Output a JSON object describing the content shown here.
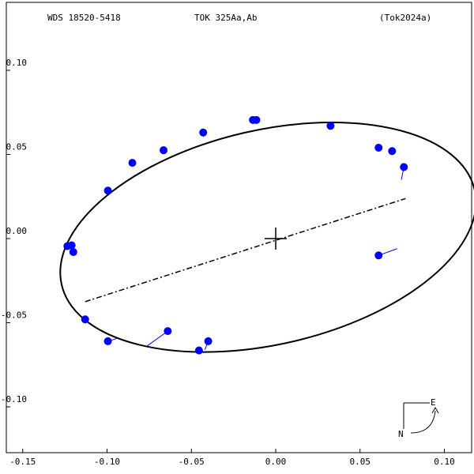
{
  "header": {
    "left": "WDS 18520-5418",
    "center": "TOK 325Aa,Ab",
    "right": "(Tok2024a)"
  },
  "compass": {
    "east_label": "E",
    "north_label": "N"
  },
  "colors": {
    "points": "#0000ff",
    "orbit": "#000000",
    "frame": "#000000"
  },
  "chart_data": {
    "type": "scatter",
    "xlim": [
      -0.15,
      0.1
    ],
    "ylim": [
      -0.12,
      0.12
    ],
    "x_ticks": [
      -0.15,
      -0.1,
      -0.05,
      0.0,
      0.05,
      0.1
    ],
    "x_tick_labels": [
      "-0.15",
      "-0.10",
      "-0.05",
      "0.00",
      "0.05",
      "0.10"
    ],
    "y_ticks": [
      0.1,
      0.05,
      0.0,
      -0.05,
      -0.1
    ],
    "y_tick_labels": [
      "0.10",
      "0.05",
      "0.00",
      "-0.05",
      "-0.10"
    ],
    "grid": false,
    "orbit": {
      "center": [
        -0.0045,
        0.0008
      ],
      "semi_major_axis": 0.1256,
      "semi_minor_axis": 0.0637,
      "tilt_deg": 13
    },
    "line_of_nodes": {
      "from": [
        -0.113,
        -0.0375
      ],
      "to": [
        0.077,
        0.0238
      ]
    },
    "primary": [
      0.0,
      0.0
    ],
    "observations": [
      {
        "x": -0.0135,
        "y": 0.0705,
        "orbit_x": -0.0135,
        "orbit_y": 0.0705
      },
      {
        "x": -0.0115,
        "y": 0.0705,
        "orbit_x": -0.0115,
        "orbit_y": 0.0705
      },
      {
        "x": 0.0325,
        "y": 0.067,
        "orbit_x": 0.0325,
        "orbit_y": 0.067
      },
      {
        "x": -0.043,
        "y": 0.063,
        "orbit_x": -0.043,
        "orbit_y": 0.063
      },
      {
        "x": 0.061,
        "y": 0.054,
        "orbit_x": 0.061,
        "orbit_y": 0.054
      },
      {
        "x": 0.069,
        "y": 0.052,
        "orbit_x": 0.069,
        "orbit_y": 0.052
      },
      {
        "x": -0.0665,
        "y": 0.0525,
        "orbit_x": -0.0665,
        "orbit_y": 0.0525
      },
      {
        "x": -0.085,
        "y": 0.045,
        "orbit_x": -0.085,
        "orbit_y": 0.045
      },
      {
        "x": 0.076,
        "y": 0.0425,
        "orbit_x": 0.0745,
        "orbit_y": 0.035
      },
      {
        "x": -0.0995,
        "y": 0.0285,
        "orbit_x": -0.0995,
        "orbit_y": 0.0285
      },
      {
        "x": -0.1235,
        "y": -0.0045,
        "orbit_x": -0.1235,
        "orbit_y": -0.0045
      },
      {
        "x": -0.121,
        "y": -0.004,
        "orbit_x": -0.121,
        "orbit_y": -0.004
      },
      {
        "x": -0.12,
        "y": -0.008,
        "orbit_x": -0.12,
        "orbit_y": -0.008
      },
      {
        "x": 0.061,
        "y": -0.01,
        "orbit_x": 0.072,
        "orbit_y": -0.006
      },
      {
        "x": -0.113,
        "y": -0.048,
        "orbit_x": -0.113,
        "orbit_y": -0.048
      },
      {
        "x": -0.064,
        "y": -0.055,
        "orbit_x": -0.0765,
        "orbit_y": -0.064
      },
      {
        "x": -0.0995,
        "y": -0.061,
        "orbit_x": -0.093,
        "orbit_y": -0.059
      },
      {
        "x": -0.04,
        "y": -0.061,
        "orbit_x": -0.042,
        "orbit_y": -0.066
      },
      {
        "x": -0.0455,
        "y": -0.0665,
        "orbit_x": -0.0455,
        "orbit_y": -0.0665
      }
    ]
  }
}
